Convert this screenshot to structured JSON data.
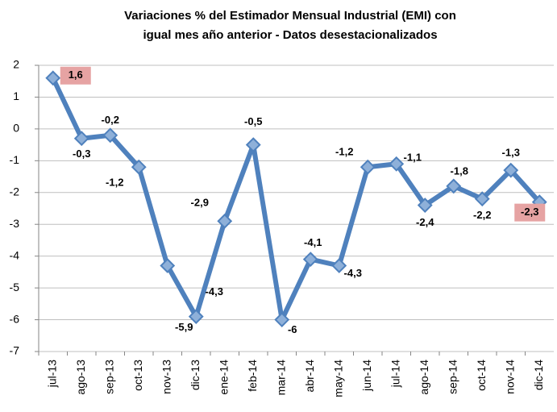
{
  "chart_data": {
    "type": "line",
    "title": [
      "Variaciones % del Estimador Mensual Industrial (EMI) con",
      "igual mes año anterior - Datos desestacionalizados"
    ],
    "categories": [
      "jul-13",
      "ago-13",
      "sep-13",
      "oct-13",
      "nov-13",
      "dic-13",
      "ene-14",
      "feb-14",
      "mar-14",
      "abr-14",
      "may-14",
      "jun-14",
      "jul-14",
      "ago-14",
      "sep-14",
      "oct-14",
      "nov-14",
      "dic-14"
    ],
    "series": [
      {
        "color": "#4f81bd",
        "values": [
          1.6,
          -0.3,
          -0.2,
          -1.2,
          -4.3,
          -5.9,
          -2.9,
          -0.5,
          -6,
          -4.1,
          -4.3,
          -1.2,
          -1.1,
          -2.4,
          -1.8,
          -2.2,
          -1.3,
          -2.3
        ],
        "value_labels": [
          "1,6",
          "-0,3",
          "-0,2",
          "-1,2",
          "-4,3",
          "-5,9",
          "-2,9",
          "-0,5",
          "-6",
          "-4,1",
          "-4,3",
          "-1,2",
          "-1,1",
          "-2,4",
          "-1,8",
          "-2,2",
          "-1,3",
          "-2,3"
        ]
      }
    ],
    "ylim": [
      -7,
      2
    ],
    "yticks": [
      -7,
      -6,
      -5,
      -4,
      -3,
      -2,
      -1,
      0,
      1,
      2
    ],
    "grid": true
  }
}
